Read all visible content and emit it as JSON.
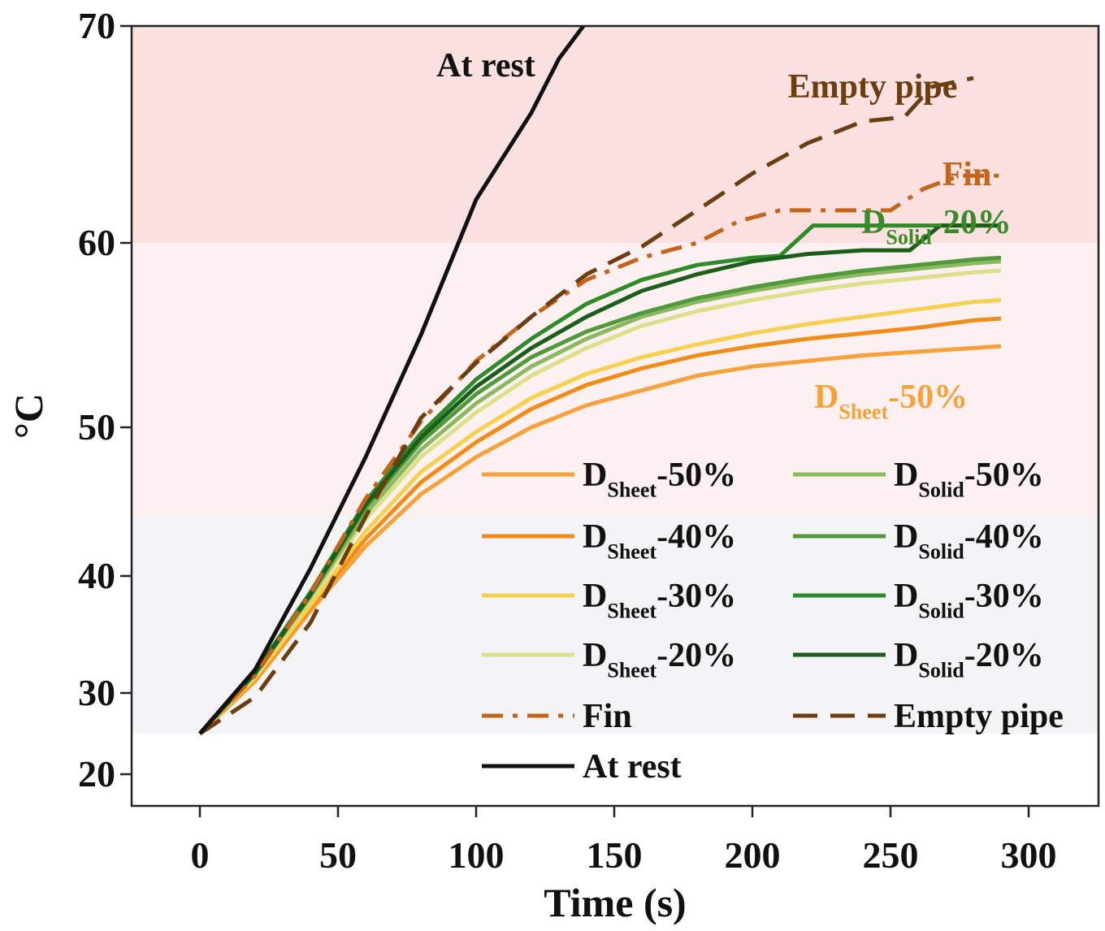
{
  "chart_data": {
    "type": "line",
    "title": "",
    "xlabel": "Time (s)",
    "ylabel": "°C",
    "xlim": [
      -25,
      325
    ],
    "x_ticks": [
      0,
      50,
      100,
      150,
      200,
      250,
      300
    ],
    "y_ticks": [
      20,
      30,
      40,
      50,
      60,
      70
    ],
    "grid": false,
    "background_bands": [
      {
        "from": 60,
        "to": 70,
        "color": "#fbe0e0"
      },
      {
        "from": 44,
        "to": 60,
        "color": "#fdf0f0"
      },
      {
        "from": 25,
        "to": 44,
        "color": "#f4f4f6"
      }
    ],
    "legend_position": "lower-right",
    "series": [
      {
        "name": "DSheet-50%",
        "label": {
          "base": "D",
          "sub": "Sheet",
          "suffix": "-50%"
        },
        "color": "#f7a13a",
        "dash": "solid",
        "x": [
          0,
          20,
          40,
          60,
          80,
          100,
          120,
          140,
          160,
          180,
          200,
          220,
          240,
          260,
          280,
          290
        ],
        "y": [
          25,
          31,
          37,
          42,
          45.5,
          48,
          50,
          51.2,
          52,
          52.8,
          53.3,
          53.6,
          53.9,
          54.1,
          54.3,
          54.4
        ]
      },
      {
        "name": "DSheet-40%",
        "label": {
          "base": "D",
          "sub": "Sheet",
          "suffix": "-40%"
        },
        "color": "#f28c18",
        "dash": "solid",
        "x": [
          0,
          20,
          40,
          60,
          80,
          100,
          120,
          140,
          160,
          180,
          200,
          220,
          240,
          260,
          280,
          290
        ],
        "y": [
          25,
          31.2,
          37.3,
          42.5,
          46.3,
          49,
          51,
          52.3,
          53.2,
          53.9,
          54.4,
          54.8,
          55.1,
          55.4,
          55.8,
          55.9
        ]
      },
      {
        "name": "DSheet-30%",
        "label": {
          "base": "D",
          "sub": "Sheet",
          "suffix": "-30%"
        },
        "color": "#f8d04f",
        "dash": "solid",
        "x": [
          0,
          20,
          40,
          60,
          80,
          100,
          120,
          140,
          160,
          180,
          200,
          220,
          240,
          260,
          280,
          290
        ],
        "y": [
          25,
          31.3,
          37.5,
          43,
          47,
          49.7,
          51.6,
          52.9,
          53.8,
          54.5,
          55.1,
          55.6,
          56,
          56.4,
          56.8,
          56.9
        ]
      },
      {
        "name": "DSheet-20%",
        "label": {
          "base": "D",
          "sub": "Sheet",
          "suffix": "-20%"
        },
        "color": "#dde08a",
        "dash": "solid",
        "x": [
          0,
          20,
          40,
          60,
          80,
          100,
          120,
          140,
          160,
          180,
          200,
          220,
          240,
          260,
          280,
          290
        ],
        "y": [
          25,
          31.5,
          38,
          43.8,
          48,
          50.8,
          52.8,
          54.3,
          55.5,
          56.3,
          56.9,
          57.4,
          57.8,
          58.1,
          58.4,
          58.5
        ]
      },
      {
        "name": "DSolid-50%",
        "label": {
          "base": "D",
          "sub": "Solid",
          "suffix": "-50%"
        },
        "color": "#8cb860",
        "dash": "solid",
        "x": [
          0,
          20,
          40,
          60,
          80,
          100,
          120,
          140,
          160,
          180,
          200,
          220,
          240,
          260,
          280,
          290
        ],
        "y": [
          25,
          31.6,
          38.2,
          44.2,
          48.5,
          51.3,
          53.3,
          54.8,
          56,
          56.8,
          57.4,
          57.9,
          58.3,
          58.6,
          58.9,
          59
        ]
      },
      {
        "name": "DSolid-40%",
        "label": {
          "base": "D",
          "sub": "Solid",
          "suffix": "-40%"
        },
        "color": "#4f9a3a",
        "dash": "solid",
        "x": [
          0,
          20,
          40,
          60,
          80,
          100,
          120,
          140,
          160,
          180,
          200,
          220,
          240,
          260,
          280,
          290
        ],
        "y": [
          25,
          31.7,
          38.4,
          44.6,
          49,
          51.8,
          53.8,
          55.2,
          56.2,
          57,
          57.6,
          58.1,
          58.5,
          58.8,
          59.1,
          59.2
        ]
      },
      {
        "name": "DSolid-30%",
        "label": {
          "base": "D",
          "sub": "Solid",
          "suffix": "-30%"
        },
        "color": "#2f8a2a",
        "dash": "solid",
        "x": [
          0,
          20,
          40,
          60,
          80,
          100,
          120,
          140,
          160,
          180,
          200,
          210,
          222,
          240,
          260,
          280,
          290
        ],
        "y": [
          25,
          31.8,
          38.6,
          45,
          49.6,
          52.6,
          54.8,
          56.7,
          58,
          58.8,
          59.2,
          59.3,
          60.8,
          60.8,
          60.8,
          60.8,
          60.8
        ]
      },
      {
        "name": "DSolid-20%",
        "label": {
          "base": "D",
          "sub": "Solid",
          "suffix": "-20%"
        },
        "color": "#1b5e1b",
        "dash": "solid",
        "x": [
          0,
          20,
          40,
          60,
          80,
          100,
          120,
          140,
          160,
          180,
          200,
          220,
          240,
          257,
          268,
          280,
          290
        ],
        "y": [
          25,
          31.7,
          38.4,
          44.8,
          49.3,
          52.2,
          54.3,
          56,
          57.4,
          58.3,
          59,
          59.4,
          59.6,
          59.6,
          60.8,
          60.8,
          60.8
        ]
      },
      {
        "name": "Fin",
        "label": {
          "base": "Fin",
          "sub": "",
          "suffix": ""
        },
        "color": "#c4651e",
        "dash": "dashdot",
        "x": [
          0,
          20,
          40,
          60,
          80,
          100,
          120,
          140,
          160,
          180,
          195,
          210,
          230,
          250,
          262,
          275,
          290
        ],
        "y": [
          25,
          31.5,
          38.5,
          45.2,
          50.3,
          53.6,
          56,
          58,
          59.2,
          60,
          61,
          61.5,
          61.5,
          61.5,
          62.5,
          63.1,
          63.1
        ]
      },
      {
        "name": "Empty pipe",
        "label": {
          "base": "Empty pipe",
          "sub": "",
          "suffix": ""
        },
        "color": "#6b3e12",
        "dash": "dashed",
        "x": [
          0,
          20,
          40,
          60,
          80,
          100,
          120,
          140,
          160,
          180,
          200,
          220,
          240,
          255,
          265,
          280
        ],
        "y": [
          25,
          29.5,
          36,
          44,
          50.5,
          53.5,
          56,
          58.3,
          59.8,
          61.5,
          63.2,
          64.6,
          65.6,
          65.8,
          67.2,
          67.6
        ]
      },
      {
        "name": "At rest",
        "label": {
          "base": "At rest",
          "sub": "",
          "suffix": ""
        },
        "color": "#111111",
        "dash": "solid",
        "x": [
          0,
          20,
          40,
          60,
          80,
          100,
          110,
          120,
          130,
          140
        ],
        "y": [
          25,
          32,
          40.5,
          48,
          55,
          62,
          64,
          66,
          68.5,
          70.2
        ]
      }
    ],
    "annotations": [
      {
        "text": "At rest",
        "color": "#111111"
      },
      {
        "text": "Empty pipe",
        "color": "#6b3e12"
      },
      {
        "text": "Fin",
        "color": "#c4651e"
      },
      {
        "text": "DSolid-20%",
        "base": "D",
        "sub": "Solid",
        "suffix": "-20%",
        "color": "#3a8a2a"
      },
      {
        "text": "DSheet-50%",
        "base": "D",
        "sub": "Sheet",
        "suffix": "-50%",
        "color": "#f7a13a"
      }
    ]
  }
}
